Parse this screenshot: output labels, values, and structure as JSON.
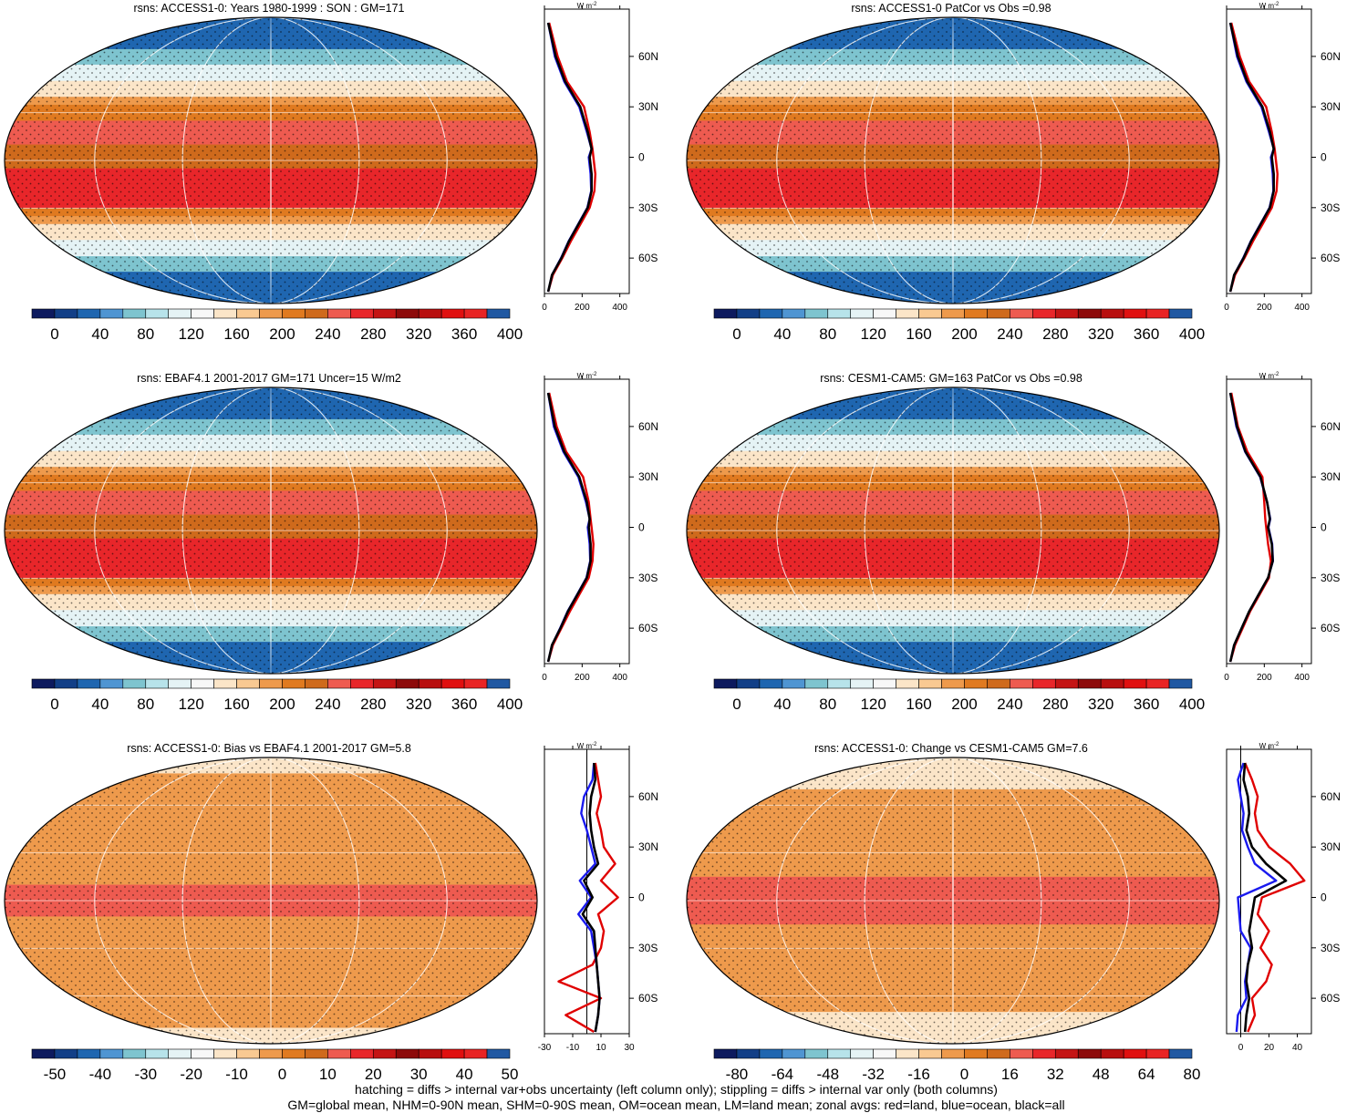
{
  "panels": [
    {
      "id": "p1",
      "title": "rsns: ACCESS1-0: Years 1980-1999 : SON : GM=171",
      "colorbar": {
        "labels": [
          "0",
          "40",
          "80",
          "120",
          "160",
          "200",
          "240",
          "280",
          "320",
          "360",
          "400"
        ]
      },
      "profile": {
        "ticks": [
          "0",
          "200",
          "400"
        ],
        "xlim": [
          0,
          450
        ],
        "unit": "W m",
        "unit_sup": "-2",
        "lat_labels": [
          "60N",
          "30N",
          "0",
          "30S",
          "60S"
        ],
        "kind": "mean"
      }
    },
    {
      "id": "p2",
      "title": "rsns: ACCESS1-0 PatCor vs Obs =0.98",
      "colorbar": {
        "labels": [
          "0",
          "40",
          "80",
          "120",
          "160",
          "200",
          "240",
          "280",
          "320",
          "360",
          "400"
        ]
      },
      "profile": {
        "ticks": [
          "0",
          "200",
          "400"
        ],
        "xlim": [
          0,
          450
        ],
        "unit": "W m",
        "unit_sup": "-2",
        "lat_labels": [
          "60N",
          "30N",
          "0",
          "30S",
          "60S"
        ],
        "kind": "mean"
      }
    },
    {
      "id": "p3",
      "title": "rsns: EBAF4.1 2001-2017 GM=171 Uncer=15 W/m2",
      "colorbar": {
        "labels": [
          "0",
          "40",
          "80",
          "120",
          "160",
          "200",
          "240",
          "280",
          "320",
          "360",
          "400"
        ]
      },
      "profile": {
        "ticks": [
          "0",
          "200",
          "400"
        ],
        "xlim": [
          0,
          450
        ],
        "unit": "W m",
        "unit_sup": "-2",
        "lat_labels": [
          "60N",
          "30N",
          "0",
          "30S",
          "60S"
        ],
        "kind": "mean"
      }
    },
    {
      "id": "p4",
      "title": "rsns: CESM1-CAM5: GM=163 PatCor vs Obs =0.98",
      "colorbar": {
        "labels": [
          "0",
          "40",
          "80",
          "120",
          "160",
          "200",
          "240",
          "280",
          "320",
          "360",
          "400"
        ]
      },
      "profile": {
        "ticks": [
          "0",
          "200",
          "400"
        ],
        "xlim": [
          0,
          450
        ],
        "unit": "W m",
        "unit_sup": "-2",
        "lat_labels": [
          "60N",
          "30N",
          "0",
          "30S",
          "60S"
        ],
        "kind": "mean"
      }
    },
    {
      "id": "p5",
      "title": "rsns: ACCESS1-0: Bias vs EBAF4.1 2001-2017  GM=5.8",
      "colorbar": {
        "labels": [
          "-50",
          "-40",
          "-30",
          "-20",
          "-10",
          "0",
          "10",
          "20",
          "30",
          "40",
          "50"
        ]
      },
      "profile": {
        "ticks": [
          "-30",
          "-10",
          "10",
          "30"
        ],
        "xlim": [
          -30,
          30
        ],
        "unit": "W m",
        "unit_sup": "-2",
        "lat_labels": [
          "60N",
          "30N",
          "0",
          "30S",
          "60S"
        ],
        "kind": "bias"
      }
    },
    {
      "id": "p6",
      "title": "rsns: ACCESS1-0: Change vs CESM1-CAM5 GM=7.6",
      "colorbar": {
        "labels": [
          "-80",
          "-64",
          "-48",
          "-32",
          "-16",
          "0",
          "16",
          "32",
          "48",
          "64",
          "80"
        ]
      },
      "profile": {
        "ticks": [
          "0",
          "20",
          "40"
        ],
        "xlim": [
          -10,
          50
        ],
        "unit": "W m",
        "unit_sup": "-2",
        "lat_labels": [
          "60N",
          "30N",
          "0",
          "30S",
          "60S"
        ],
        "kind": "change"
      }
    }
  ],
  "colors": {
    "mean_scale": [
      "#0d1a5e",
      "#123f87",
      "#1f66b0",
      "#4f95d2",
      "#7ec4cf",
      "#b7e3ea",
      "#e5f3f5",
      "#f7f7f7",
      "#fbe5c8",
      "#f9c992",
      "#ee9a4c",
      "#e07a20",
      "#cf6a1c",
      "#ee5b50",
      "#e8262a",
      "#c41414",
      "#8d0a0a",
      "#b80f0f",
      "#e01010",
      "#e82424",
      "#2058a2"
    ],
    "div_scale": [
      "#0d1a5e",
      "#123f87",
      "#1f66b0",
      "#4f95d2",
      "#7ec4cf",
      "#b7e3ea",
      "#e5f3f5",
      "#f7f7f7",
      "#fbe5c8",
      "#f9c992",
      "#ee9a4c",
      "#e07a20",
      "#cf6a1c",
      "#ee5b50",
      "#e8262a",
      "#c41414",
      "#8d0a0a",
      "#b80f0f",
      "#e01010",
      "#e82424",
      "#2058a2"
    ],
    "land": "#e00000",
    "ocean": "#1a1aee",
    "all": "#000000"
  },
  "footer": {
    "line1": "hatching = diffs > internal var+obs uncertainty (left column only); stippling = diffs > internal var only (both columns)",
    "line2": "GM=global mean, NHM=0-90N mean, SHM=0-90S mean, OM=ocean mean, LM=land mean; zonal avgs: red=land, blue=ocean, black=all"
  },
  "chart_data": [
    {
      "type": "heatmap",
      "title": "rsns: ACCESS1-0: Years 1980-1999 : SON : GM=171",
      "clim": [
        0,
        400
      ],
      "zonal_profile": {
        "lat": [
          80,
          60,
          45,
          30,
          15,
          5,
          0,
          -10,
          -20,
          -30,
          -40,
          -50,
          -60,
          -70,
          -80
        ],
        "all": [
          20,
          60,
          110,
          190,
          230,
          250,
          240,
          250,
          250,
          230,
          180,
          130,
          90,
          40,
          20
        ],
        "land": [
          25,
          70,
          120,
          210,
          240,
          255,
          260,
          270,
          265,
          240,
          190,
          140,
          95,
          45,
          20
        ],
        "ocean": [
          20,
          55,
          105,
          185,
          225,
          250,
          235,
          245,
          248,
          228,
          178,
          128,
          88,
          40,
          20
        ]
      }
    },
    {
      "type": "heatmap",
      "title": "rsns: ACCESS1-0 PatCor vs Obs =0.98",
      "clim": [
        0,
        400
      ],
      "zonal_profile": {
        "lat": [
          80,
          60,
          45,
          30,
          15,
          5,
          0,
          -10,
          -20,
          -30,
          -40,
          -50,
          -60,
          -70,
          -80
        ],
        "all": [
          20,
          60,
          110,
          190,
          230,
          250,
          240,
          250,
          250,
          230,
          180,
          130,
          90,
          40,
          20
        ],
        "land": [
          25,
          70,
          120,
          210,
          240,
          255,
          260,
          270,
          265,
          240,
          190,
          140,
          95,
          45,
          20
        ],
        "ocean": [
          20,
          55,
          105,
          185,
          225,
          250,
          235,
          245,
          248,
          228,
          178,
          128,
          88,
          40,
          20
        ]
      }
    },
    {
      "type": "heatmap",
      "title": "rsns: EBAF4.1 2001-2017 GM=171 Uncer=15 W/m2",
      "clim": [
        0,
        400
      ],
      "zonal_profile": {
        "lat": [
          80,
          60,
          45,
          30,
          15,
          5,
          0,
          -10,
          -20,
          -30,
          -40,
          -50,
          -60,
          -70,
          -80
        ],
        "all": [
          20,
          55,
          105,
          185,
          225,
          240,
          235,
          245,
          245,
          225,
          175,
          125,
          85,
          40,
          20
        ],
        "land": [
          25,
          65,
          115,
          205,
          235,
          245,
          250,
          260,
          255,
          235,
          185,
          135,
          90,
          45,
          20
        ],
        "ocean": [
          20,
          50,
          100,
          180,
          220,
          240,
          230,
          240,
          243,
          223,
          173,
          123,
          83,
          40,
          20
        ]
      }
    },
    {
      "type": "heatmap",
      "title": "rsns: CESM1-CAM5: GM=163 PatCor vs Obs =0.98",
      "clim": [
        0,
        400
      ],
      "zonal_profile": {
        "lat": [
          80,
          60,
          45,
          30,
          15,
          5,
          0,
          -10,
          -20,
          -30,
          -40,
          -50,
          -60,
          -70,
          -80
        ],
        "all": [
          20,
          55,
          100,
          180,
          215,
          230,
          220,
          240,
          245,
          220,
          170,
          120,
          80,
          40,
          20
        ],
        "land": [
          25,
          60,
          110,
          190,
          200,
          205,
          210,
          220,
          235,
          225,
          175,
          125,
          85,
          45,
          20
        ],
        "ocean": [
          20,
          52,
          98,
          178,
          215,
          232,
          222,
          242,
          246,
          220,
          170,
          120,
          80,
          40,
          20
        ]
      }
    },
    {
      "type": "heatmap",
      "title": "rsns: ACCESS1-0: Bias vs EBAF4.1 2001-2017  GM=5.8",
      "clim": [
        -50,
        50
      ],
      "zonal_profile": {
        "lat": [
          80,
          70,
          60,
          50,
          40,
          30,
          20,
          10,
          0,
          -10,
          -20,
          -30,
          -40,
          -50,
          -60,
          -70,
          -80
        ],
        "all": [
          5,
          6,
          3,
          2,
          3,
          5,
          8,
          -2,
          4,
          -3,
          5,
          6,
          7,
          8,
          9,
          8,
          6
        ],
        "land": [
          6,
          8,
          10,
          7,
          10,
          12,
          20,
          10,
          22,
          8,
          12,
          10,
          4,
          -20,
          10,
          -15,
          5
        ],
        "ocean": [
          5,
          4,
          -2,
          -4,
          0,
          3,
          6,
          -5,
          3,
          -6,
          3,
          5,
          7,
          8,
          9,
          8,
          6
        ]
      }
    },
    {
      "type": "heatmap",
      "title": "rsns: ACCESS1-0: Change vs CESM1-CAM5 GM=7.6",
      "clim": [
        -80,
        80
      ],
      "zonal_profile": {
        "lat": [
          80,
          70,
          60,
          50,
          40,
          30,
          20,
          10,
          0,
          -10,
          -20,
          -30,
          -40,
          -50,
          -60,
          -70,
          -80
        ],
        "all": [
          3,
          2,
          5,
          6,
          4,
          8,
          18,
          32,
          10,
          8,
          6,
          8,
          5,
          4,
          6,
          4,
          3
        ],
        "land": [
          3,
          8,
          12,
          10,
          12,
          20,
          35,
          45,
          15,
          12,
          20,
          14,
          22,
          18,
          8,
          10,
          5
        ],
        "ocean": [
          2,
          -2,
          0,
          2,
          1,
          5,
          10,
          25,
          -2,
          -1,
          0,
          7,
          5,
          3,
          4,
          -2,
          -3
        ]
      }
    }
  ]
}
